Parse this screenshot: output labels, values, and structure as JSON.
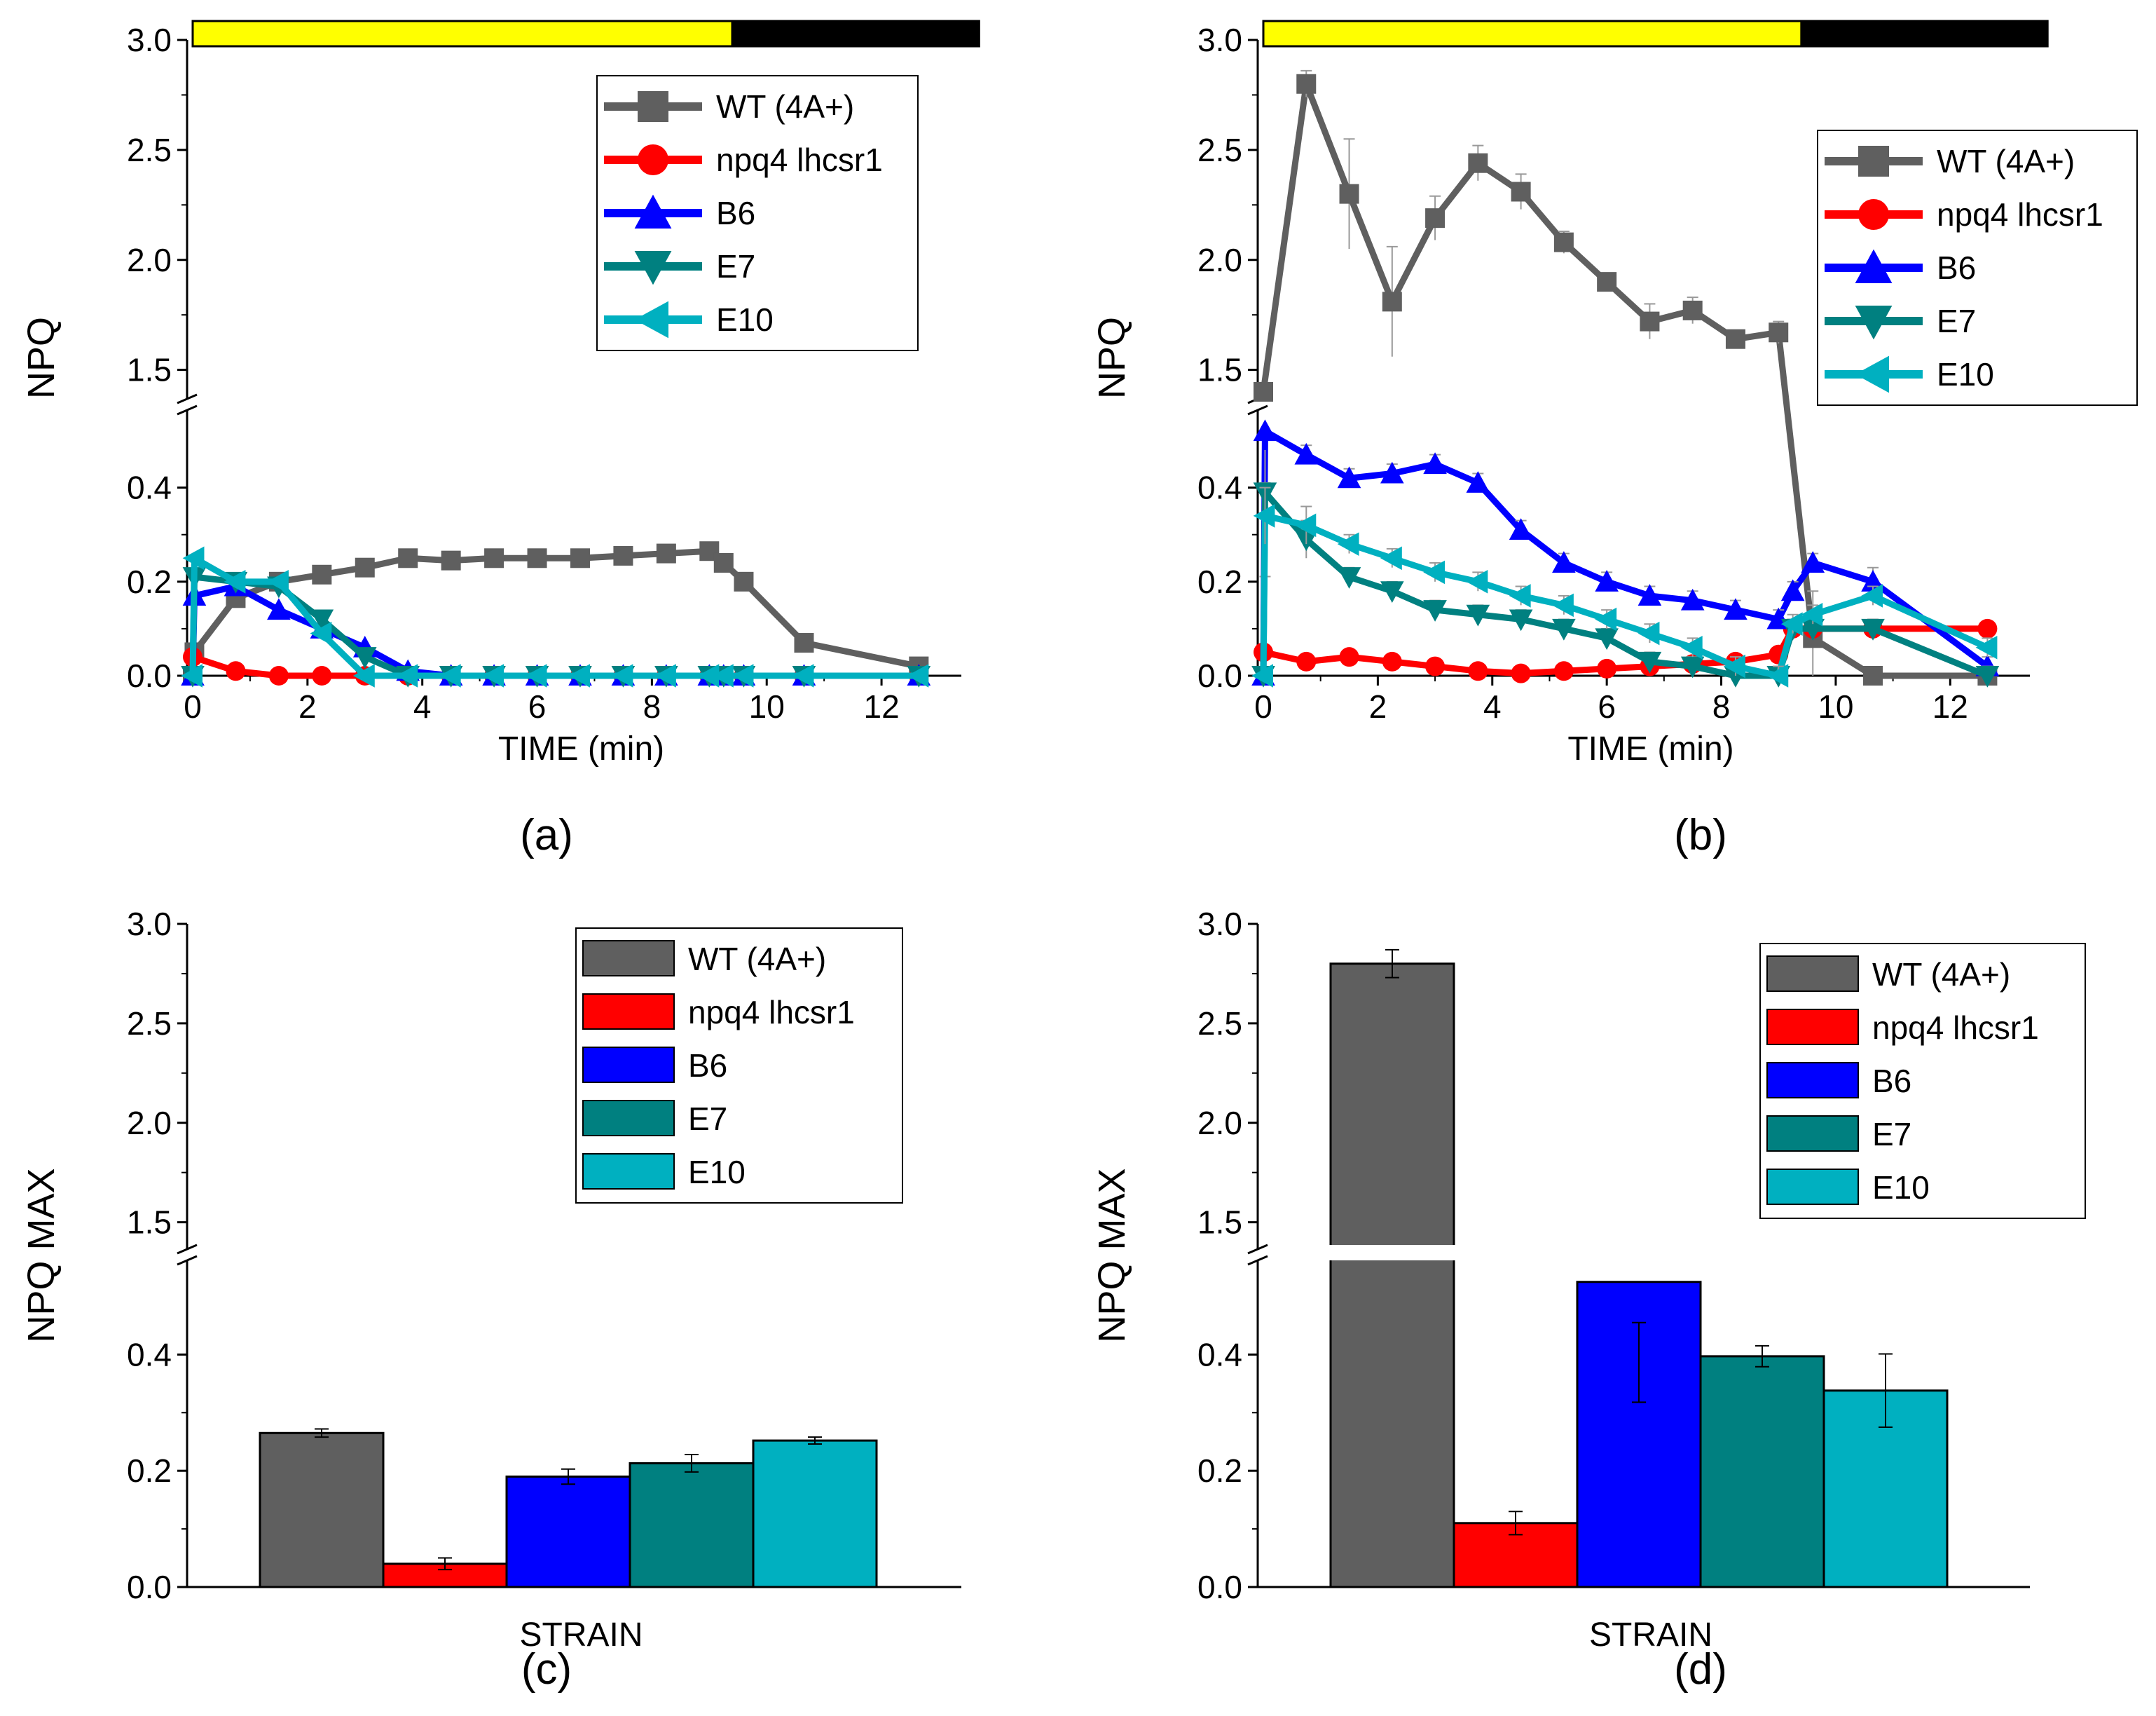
{
  "colors": {
    "wt": "#5f5f5f",
    "npq4": "#ff0000",
    "b6": "#0000ff",
    "e7": "#008080",
    "e10": "#00b0c0",
    "light_bar": "#ffff00",
    "dark_bar": "#000000"
  },
  "chart_data": [
    {
      "id": "a",
      "type": "line",
      "panel_label": "(a)",
      "xlabel": "TIME (min)",
      "ylabel": "NPQ",
      "xlim": [
        0,
        13
      ],
      "ylim": [
        0,
        3.0
      ],
      "y_axis_break": [
        0.55,
        1.4
      ],
      "x_ticks": [
        "0",
        "2",
        "4",
        "6",
        "8",
        "10",
        "12"
      ],
      "y_ticks": [
        "0.0",
        "0.2",
        "0.4",
        "1.5",
        "2.0",
        "2.5",
        "3.0"
      ],
      "light_period": [
        0,
        9.4
      ],
      "dark_period": [
        9.4,
        13.7
      ],
      "legend": [
        "WT (4A+)",
        "npq4 lhcsr1",
        "B6",
        "E7",
        "E10"
      ],
      "legend_position": "top-right",
      "series": [
        {
          "name": "WT (4A+)",
          "marker": "square",
          "x": [
            0,
            0.03,
            0.75,
            1.5,
            2.25,
            3,
            3.75,
            4.5,
            5.25,
            6,
            6.75,
            7.5,
            8.25,
            9,
            9.25,
            9.6,
            10.65,
            12.65
          ],
          "y": [
            0.0,
            0.05,
            0.165,
            0.2,
            0.215,
            0.23,
            0.25,
            0.245,
            0.25,
            0.25,
            0.25,
            0.255,
            0.26,
            0.265,
            0.24,
            0.2,
            0.07,
            0.02
          ]
        },
        {
          "name": "npq4 lhcsr1",
          "marker": "circle",
          "x": [
            0,
            0.75,
            1.5,
            2.25,
            3,
            3.75,
            4.5,
            5.25,
            6,
            6.75,
            7.5,
            8.25,
            9,
            9.25,
            9.6,
            10.65,
            12.65
          ],
          "y": [
            0.04,
            0.01,
            0.0,
            0.0,
            0.0,
            0.0,
            0.0,
            0.0,
            0.0,
            0.0,
            0.0,
            0.0,
            0.0,
            0.0,
            0.0,
            0.0,
            0.0
          ]
        },
        {
          "name": "B6",
          "marker": "triangle-up",
          "x": [
            0,
            0.03,
            0.75,
            1.5,
            2.25,
            3,
            3.75,
            4.5,
            5.25,
            6,
            6.75,
            7.5,
            8.25,
            9,
            9.25,
            9.6,
            10.65,
            12.65
          ],
          "y": [
            0.0,
            0.17,
            0.19,
            0.14,
            0.1,
            0.06,
            0.01,
            0.0,
            0.0,
            0.0,
            0.0,
            0.0,
            0.0,
            0.0,
            0.0,
            0.0,
            0.0,
            0.0
          ]
        },
        {
          "name": "E7",
          "marker": "triangle-down",
          "x": [
            0,
            0.03,
            0.75,
            1.5,
            2.25,
            3,
            3.75,
            4.5,
            5.25,
            6,
            6.75,
            7.5,
            8.25,
            9,
            9.25,
            9.6,
            10.65,
            12.65
          ],
          "y": [
            0.0,
            0.21,
            0.2,
            0.19,
            0.12,
            0.04,
            0.0,
            0.0,
            0.0,
            0.0,
            0.0,
            0.0,
            0.0,
            0.0,
            0.0,
            0.0,
            0.0,
            0.0
          ]
        },
        {
          "name": "E10",
          "marker": "triangle-left",
          "x": [
            0,
            0.03,
            0.75,
            1.5,
            2.25,
            3,
            3.75,
            4.5,
            5.25,
            6,
            6.75,
            7.5,
            8.25,
            9,
            9.25,
            9.6,
            10.65,
            12.65
          ],
          "y": [
            0.0,
            0.25,
            0.2,
            0.2,
            0.09,
            0.0,
            0.0,
            0.0,
            0.0,
            0.0,
            0.0,
            0.0,
            0.0,
            0.0,
            0.0,
            0.0,
            0.0,
            0.0
          ]
        }
      ]
    },
    {
      "id": "b",
      "type": "line",
      "panel_label": "(b)",
      "xlabel": "TIME (min)",
      "ylabel": "NPQ",
      "xlim": [
        0,
        13
      ],
      "ylim": [
        0,
        3.0
      ],
      "y_axis_break": [
        0.55,
        1.4
      ],
      "x_ticks": [
        "0",
        "2",
        "4",
        "6",
        "8",
        "10",
        "12"
      ],
      "y_ticks": [
        "0.0",
        "0.2",
        "0.4",
        "1.5",
        "2.0",
        "2.5",
        "3.0"
      ],
      "light_period": [
        0,
        9.4
      ],
      "dark_period": [
        9.4,
        13.7
      ],
      "legend": [
        "WT (4A+)",
        "npq4 lhcsr1",
        "B6",
        "E7",
        "E10"
      ],
      "legend_position": "top-right",
      "series": [
        {
          "name": "WT (4A+)",
          "marker": "square",
          "x": [
            0,
            0.75,
            1.5,
            2.25,
            3,
            3.75,
            4.5,
            5.25,
            6,
            6.75,
            7.5,
            8.25,
            9,
            9.6,
            10.65,
            12.65
          ],
          "y": [
            1.4,
            2.8,
            2.3,
            1.81,
            2.19,
            2.44,
            2.31,
            2.08,
            1.9,
            1.72,
            1.77,
            1.64,
            1.67,
            0.08,
            0.0,
            0.0
          ],
          "err": [
            0,
            0.06,
            0.25,
            0.25,
            0.1,
            0.08,
            0.08,
            0.05,
            0.03,
            0.08,
            0.06,
            0.03,
            0.05,
            0.1,
            0.0,
            0.0
          ]
        },
        {
          "name": "npq4 lhcsr1",
          "marker": "circle",
          "x": [
            0,
            0.75,
            1.5,
            2.25,
            3,
            3.75,
            4.5,
            5.25,
            6,
            6.75,
            7.5,
            8.25,
            9,
            9.25,
            9.6,
            10.65,
            12.65
          ],
          "y": [
            0.05,
            0.03,
            0.04,
            0.03,
            0.02,
            0.01,
            0.005,
            0.01,
            0.015,
            0.02,
            0.025,
            0.03,
            0.045,
            0.1,
            0.1,
            0.1,
            0.1
          ]
        },
        {
          "name": "B6",
          "marker": "triangle-up",
          "x": [
            0,
            0.03,
            0.75,
            1.5,
            2.25,
            3,
            3.75,
            4.5,
            5.25,
            6,
            6.75,
            7.5,
            8.25,
            9,
            9.25,
            9.6,
            10.65,
            12.65
          ],
          "y": [
            0.0,
            0.52,
            0.47,
            0.42,
            0.43,
            0.45,
            0.41,
            0.31,
            0.24,
            0.2,
            0.17,
            0.16,
            0.14,
            0.12,
            0.18,
            0.24,
            0.2,
            0.02
          ],
          "err": [
            0,
            0.04,
            0.02,
            0.02,
            0.02,
            0.02,
            0.02,
            0.02,
            0.02,
            0.02,
            0.02,
            0.02,
            0.02,
            0.02,
            0.02,
            0.02,
            0.03,
            0.02
          ]
        },
        {
          "name": "E7",
          "marker": "triangle-down",
          "x": [
            0,
            0.03,
            0.75,
            1.5,
            2.25,
            3,
            3.75,
            4.5,
            5.25,
            6,
            6.75,
            7.5,
            8.25,
            9,
            9.25,
            9.6,
            10.65,
            12.65
          ],
          "y": [
            0.0,
            0.39,
            0.29,
            0.21,
            0.18,
            0.14,
            0.13,
            0.12,
            0.1,
            0.08,
            0.03,
            0.02,
            0.0,
            0.0,
            0.1,
            0.1,
            0.1,
            0.0
          ],
          "err": [
            0,
            0.02,
            0.04,
            0.02,
            0.02,
            0.02,
            0.02,
            0.02,
            0.02,
            0.02,
            0.02,
            0.02,
            0.02,
            0.02,
            0.02,
            0.02,
            0.02,
            0.02
          ]
        },
        {
          "name": "E10",
          "marker": "triangle-left",
          "x": [
            0,
            0.03,
            0.75,
            1.5,
            2.25,
            3,
            3.75,
            4.5,
            5.25,
            6,
            6.75,
            7.5,
            8.25,
            9,
            9.25,
            9.6,
            10.65,
            12.65
          ],
          "y": [
            0.0,
            0.34,
            0.32,
            0.28,
            0.25,
            0.22,
            0.2,
            0.17,
            0.15,
            0.12,
            0.09,
            0.06,
            0.02,
            0.0,
            0.11,
            0.13,
            0.17,
            0.06
          ],
          "err": [
            0,
            0.06,
            0.04,
            0.02,
            0.02,
            0.02,
            0.02,
            0.02,
            0.02,
            0.02,
            0.02,
            0.02,
            0.02,
            0.02,
            0.02,
            0.02,
            0.02,
            0.02
          ]
        }
      ]
    },
    {
      "id": "c",
      "type": "bar",
      "panel_label": "(c)",
      "xlabel": "STRAIN",
      "ylabel": "NPQ MAX",
      "ylim": [
        0,
        3.0
      ],
      "y_axis_break": [
        0.55,
        1.4
      ],
      "y_ticks": [
        "0.0",
        "0.2",
        "0.4",
        "1.5",
        "2.0",
        "2.5",
        "3.0"
      ],
      "legend": [
        "WT (4A+)",
        "npq4 lhcsr1",
        "B6",
        "E7",
        "E10"
      ],
      "legend_position": "top-right",
      "categories": [
        "WT (4A+)",
        "npq4 lhcsr1",
        "B6",
        "E7",
        "E10"
      ],
      "values": [
        0.265,
        0.04,
        0.19,
        0.213,
        0.252
      ],
      "errors": [
        0.007,
        0.01,
        0.013,
        0.015,
        0.006
      ]
    },
    {
      "id": "d",
      "type": "bar",
      "panel_label": "(d)",
      "xlabel": "STRAIN",
      "ylabel": "NPQ MAX",
      "ylim": [
        0,
        3.0
      ],
      "y_axis_break": [
        0.55,
        1.4
      ],
      "y_ticks": [
        "0.0",
        "0.2",
        "0.4",
        "1.5",
        "2.0",
        "2.5",
        "3.0"
      ],
      "legend": [
        "WT (4A+)",
        "npq4 lhcsr1",
        "B6",
        "E7",
        "E10"
      ],
      "legend_position": "top-right",
      "categories": [
        "WT (4A+)",
        "npq4 lhcsr1",
        "B6",
        "E7",
        "E10"
      ],
      "values": [
        2.8,
        0.11,
        0.525,
        0.397,
        0.338
      ],
      "errors": [
        0.07,
        0.02,
        0.07,
        0.018,
        0.063
      ]
    }
  ]
}
